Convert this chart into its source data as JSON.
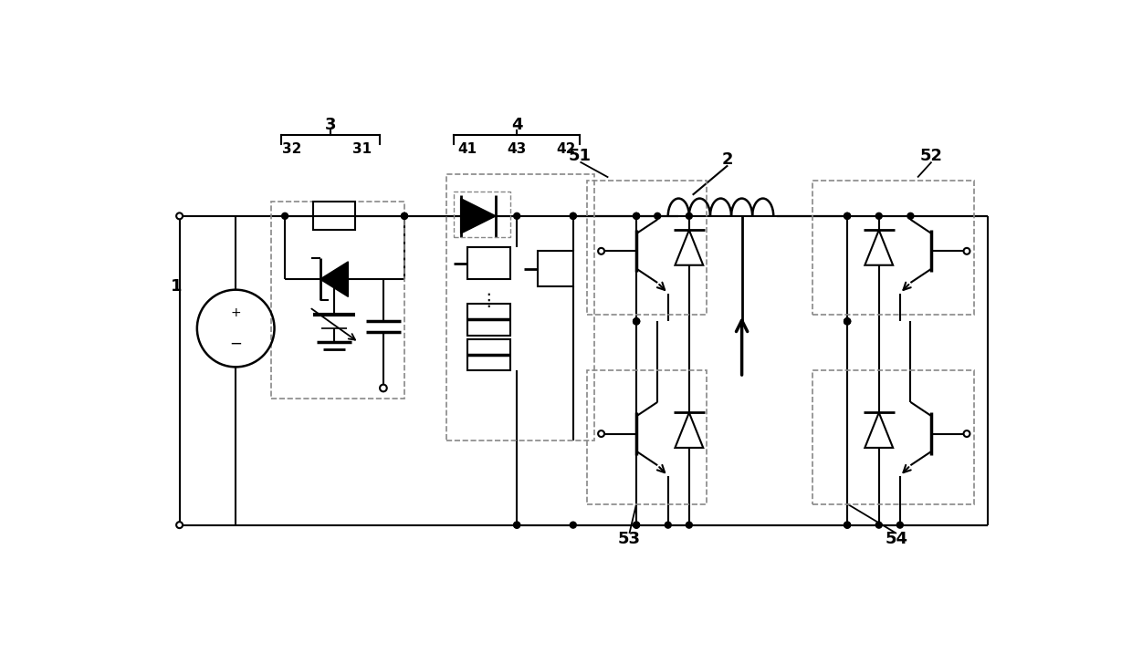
{
  "bg_color": "#ffffff",
  "line_color": "#000000",
  "dashed_color": "#888888",
  "fig_width": 12.4,
  "fig_height": 7.16
}
